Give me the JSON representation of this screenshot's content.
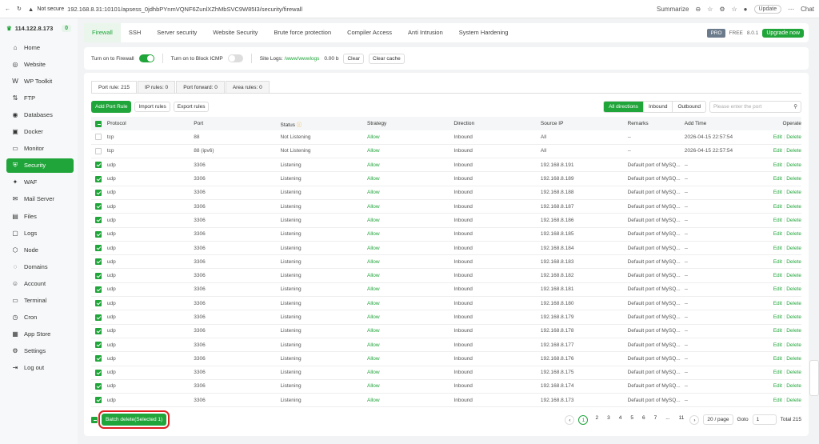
{
  "browser": {
    "security": "Not secure",
    "url": "192.168.8.31:10101/apsess_0jdhbPYnmVQNF6ZunlXZhMbSVC9W85I3/security/firewall",
    "summarize": "Summarize",
    "update": "Update",
    "chat": "Chat"
  },
  "sidebar": {
    "host": "114.122.8.173",
    "badge": "0",
    "items": [
      {
        "label": "Home",
        "icon": "⌂"
      },
      {
        "label": "Website",
        "icon": "◎"
      },
      {
        "label": "WP Toolkit",
        "icon": "W"
      },
      {
        "label": "FTP",
        "icon": "⇅"
      },
      {
        "label": "Databases",
        "icon": "◉"
      },
      {
        "label": "Docker",
        "icon": "▣"
      },
      {
        "label": "Monitor",
        "icon": "▭"
      },
      {
        "label": "Security",
        "icon": "⛨"
      },
      {
        "label": "WAF",
        "icon": "✦"
      },
      {
        "label": "Mail Server",
        "icon": "✉"
      },
      {
        "label": "Files",
        "icon": "▤"
      },
      {
        "label": "Logs",
        "icon": "▢"
      },
      {
        "label": "Node",
        "icon": "⬡"
      },
      {
        "label": "Domains",
        "icon": "◌"
      },
      {
        "label": "Account",
        "icon": "☺"
      },
      {
        "label": "Terminal",
        "icon": "▭"
      },
      {
        "label": "Cron",
        "icon": "◷"
      },
      {
        "label": "App Store",
        "icon": "▦"
      },
      {
        "label": "Settings",
        "icon": "⚙"
      },
      {
        "label": "Log out",
        "icon": "⇥"
      }
    ]
  },
  "tabs": [
    "Firewall",
    "SSH",
    "Server security",
    "Website Security",
    "Brute force protection",
    "Compiler Access",
    "Anti Intrusion",
    "System Hardening"
  ],
  "plan": {
    "pro": "PRO",
    "free": "FREE",
    "version": "8.0.1",
    "upgrade": "Upgrade now"
  },
  "firewall": {
    "firewall_label": "Turn on to Firewall",
    "firewall_on": true,
    "icmp_label": "Turn on to Block ICMP",
    "icmp_on": false,
    "site_logs_label": "Site Logs:",
    "site_logs_path": "/www/wwwlogs",
    "size": "0.00 b",
    "clear": "Clear",
    "clear_cache": "Clear cache"
  },
  "subtabs": [
    "Port rule: 215",
    "IP rules: 0",
    "Port forward: 0",
    "Area rules: 0"
  ],
  "toolbar": {
    "add": "Add Port Rule",
    "import": "Import rules",
    "export": "Export rules",
    "directions": [
      "All directions",
      "Inbound",
      "Outbound"
    ],
    "search_placeholder": "Please enter the port"
  },
  "table": {
    "headers": [
      "Protocol",
      "Port",
      "Status",
      "Strategy",
      "Direction",
      "Source IP",
      "Remarks",
      "Add Time",
      "Operate"
    ],
    "rows": [
      [
        "tcp",
        "88",
        "Not Listening",
        "Allow",
        "Inbound",
        "All",
        "--",
        "2026-04-15 22:57:54",
        false
      ],
      [
        "tcp",
        "88 (ipv6)",
        "Not Listening",
        "Allow",
        "Inbound",
        "All",
        "--",
        "2026-04-15 22:57:54",
        false
      ],
      [
        "udp",
        "3306",
        "Listening",
        "Allow",
        "Inbound",
        "192.168.8.191",
        "Default port of MySQ...",
        "--",
        true
      ],
      [
        "udp",
        "3306",
        "Listening",
        "Allow",
        "Inbound",
        "192.168.8.189",
        "Default port of MySQ...",
        "--",
        true
      ],
      [
        "udp",
        "3306",
        "Listening",
        "Allow",
        "Inbound",
        "192.168.8.188",
        "Default port of MySQ...",
        "--",
        true
      ],
      [
        "udp",
        "3306",
        "Listening",
        "Allow",
        "Inbound",
        "192.168.8.187",
        "Default port of MySQ...",
        "--",
        true
      ],
      [
        "udp",
        "3306",
        "Listening",
        "Allow",
        "Inbound",
        "192.168.8.186",
        "Default port of MySQ...",
        "--",
        true
      ],
      [
        "udp",
        "3306",
        "Listening",
        "Allow",
        "Inbound",
        "192.168.8.185",
        "Default port of MySQ...",
        "--",
        true
      ],
      [
        "udp",
        "3306",
        "Listening",
        "Allow",
        "Inbound",
        "192.168.8.184",
        "Default port of MySQ...",
        "--",
        true
      ],
      [
        "udp",
        "3306",
        "Listening",
        "Allow",
        "Inbound",
        "192.168.8.183",
        "Default port of MySQ...",
        "--",
        true
      ],
      [
        "udp",
        "3306",
        "Listening",
        "Allow",
        "Inbound",
        "192.168.8.182",
        "Default port of MySQ...",
        "--",
        true
      ],
      [
        "udp",
        "3306",
        "Listening",
        "Allow",
        "Inbound",
        "192.168.8.181",
        "Default port of MySQ...",
        "--",
        true
      ],
      [
        "udp",
        "3306",
        "Listening",
        "Allow",
        "Inbound",
        "192.168.8.180",
        "Default port of MySQ...",
        "--",
        true
      ],
      [
        "udp",
        "3306",
        "Listening",
        "Allow",
        "Inbound",
        "192.168.8.179",
        "Default port of MySQ...",
        "--",
        true
      ],
      [
        "udp",
        "3306",
        "Listening",
        "Allow",
        "Inbound",
        "192.168.8.178",
        "Default port of MySQ...",
        "--",
        true
      ],
      [
        "udp",
        "3306",
        "Listening",
        "Allow",
        "Inbound",
        "192.168.8.177",
        "Default port of MySQ...",
        "--",
        true
      ],
      [
        "udp",
        "3306",
        "Listening",
        "Allow",
        "Inbound",
        "192.168.8.176",
        "Default port of MySQ...",
        "--",
        true
      ],
      [
        "udp",
        "3306",
        "Listening",
        "Allow",
        "Inbound",
        "192.168.8.175",
        "Default port of MySQ...",
        "--",
        true
      ],
      [
        "udp",
        "3306",
        "Listening",
        "Allow",
        "Inbound",
        "192.168.8.174",
        "Default port of MySQ...",
        "--",
        true
      ],
      [
        "udp",
        "3306",
        "Listening",
        "Allow",
        "Inbound",
        "192.168.8.173",
        "Default port of MySQ...",
        "--",
        true
      ]
    ],
    "edit": "Edit",
    "delete": "Delete"
  },
  "footer": {
    "batch": "Batch delete(Selected 1)",
    "pages": [
      "1",
      "2",
      "3",
      "4",
      "5",
      "6",
      "7",
      "...",
      "11"
    ],
    "current_page": "1",
    "per_page": "20 / page",
    "goto": "Goto",
    "goto_value": "1",
    "total": "Total 215"
  },
  "accent": "#20a53a"
}
